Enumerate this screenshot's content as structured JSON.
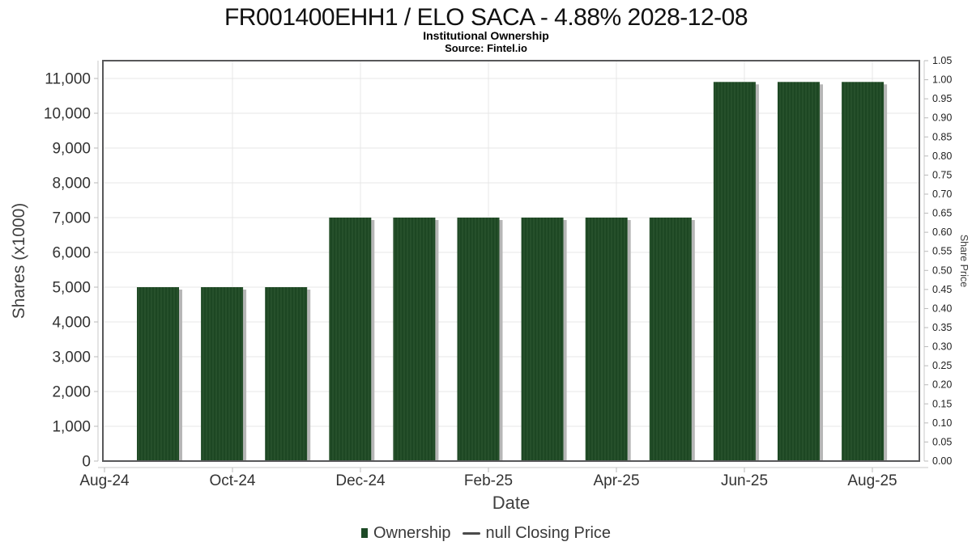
{
  "header": {
    "title": "FR001400EHH1 / ELO SACA - 4.88% 2028-12-08",
    "subtitle": "Institutional Ownership",
    "source": "Source: Fintel.io"
  },
  "legend": [
    {
      "label": "Ownership",
      "marker": "square",
      "color": "#1d4a26"
    },
    {
      "label": "null Closing Price",
      "marker": "dash",
      "color": "#4a4a4a"
    }
  ],
  "colors": {
    "bar_base": "#1d4723",
    "bar_stripe": "#2e5a33",
    "bar_shadow": "#b6b6b6",
    "gridline": "#e7e7e7",
    "plot_border": "#58585a",
    "axis_line": "#c9c9c9",
    "tick_mark": "#b9b9b9",
    "tick_label": "#333333",
    "axis_title": "#3f3f3f"
  },
  "chart_data": {
    "type": "bar",
    "title": "FR001400EHH1 / ELO SACA - 4.88% 2028-12-08",
    "subtitle": "Institutional Ownership",
    "source": "Source: Fintel.io",
    "xlabel": "Date",
    "x_tick_labels": [
      "Aug-24",
      "Oct-24",
      "Dec-24",
      "Feb-25",
      "Apr-25",
      "Jun-25",
      "Aug-25"
    ],
    "categories": [
      "Sep-24",
      "Oct-24",
      "Nov-24",
      "Dec-24",
      "Jan-25",
      "Feb-25",
      "Mar-25",
      "Apr-25",
      "May-25",
      "Jun-25",
      "Jul-25",
      "Aug-25"
    ],
    "series": [
      {
        "name": "Ownership",
        "type": "bar",
        "color": "#1d4723",
        "values": [
          5000,
          5000,
          5000,
          7000,
          7000,
          7000,
          7000,
          7000,
          7000,
          10900,
          10900,
          10900
        ]
      },
      {
        "name": "null Closing Price",
        "type": "line",
        "color": "#4a4a4a",
        "values": []
      }
    ],
    "y_left": {
      "label": "Shares (x1000)",
      "ticks": [
        0,
        1000,
        2000,
        3000,
        4000,
        5000,
        6000,
        7000,
        8000,
        9000,
        10000,
        11000
      ],
      "tick_labels": [
        "0",
        "1,000",
        "2,000",
        "3,000",
        "4,000",
        "5,000",
        "6,000",
        "7,000",
        "8,000",
        "9,000",
        "10,000",
        "11,000"
      ],
      "range": [
        0,
        11500
      ],
      "grid": true
    },
    "y_right": {
      "label": "Share Price",
      "min": 0.0,
      "max": 1.05,
      "step": 0.05,
      "tick_labels": [
        "0.00",
        "0.05",
        "0.10",
        "0.15",
        "0.20",
        "0.25",
        "0.30",
        "0.35",
        "0.40",
        "0.45",
        "0.50",
        "0.55",
        "0.60",
        "0.65",
        "0.70",
        "0.75",
        "0.80",
        "0.85",
        "0.90",
        "0.95",
        "1.00",
        "1.05"
      ]
    },
    "legend_position": "bottom",
    "grid": true
  }
}
